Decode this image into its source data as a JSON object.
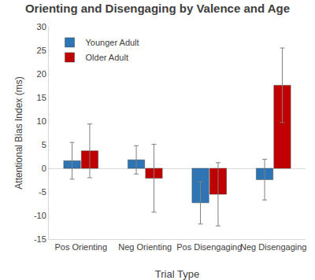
{
  "chart_data": {
    "type": "bar",
    "title": "Orienting and Disengaging by Valence and Age",
    "x_label": "Trial Type",
    "y_label": "Attentional Bias Index (ms)",
    "categories": [
      "Pos Orienting",
      "Neg Orienting",
      "Pos Disengaging",
      "Neg Disengaging"
    ],
    "series": [
      {
        "name": "Younger Adult",
        "color": "#2e75b6",
        "values": [
          1.6,
          1.8,
          -7.3,
          -2.4
        ],
        "errors": [
          3.9,
          3.0,
          4.5,
          4.3
        ]
      },
      {
        "name": "Older Adult",
        "color": "#c00000",
        "values": [
          3.7,
          -2.1,
          -5.5,
          17.6
        ],
        "errors": [
          5.7,
          7.2,
          6.7,
          7.9
        ]
      }
    ],
    "ylim": [
      -15,
      30
    ],
    "yticks": [
      -15,
      -10,
      -5,
      0,
      5,
      10,
      15,
      20,
      25,
      30
    ],
    "grid": false,
    "legend": "upper left"
  }
}
